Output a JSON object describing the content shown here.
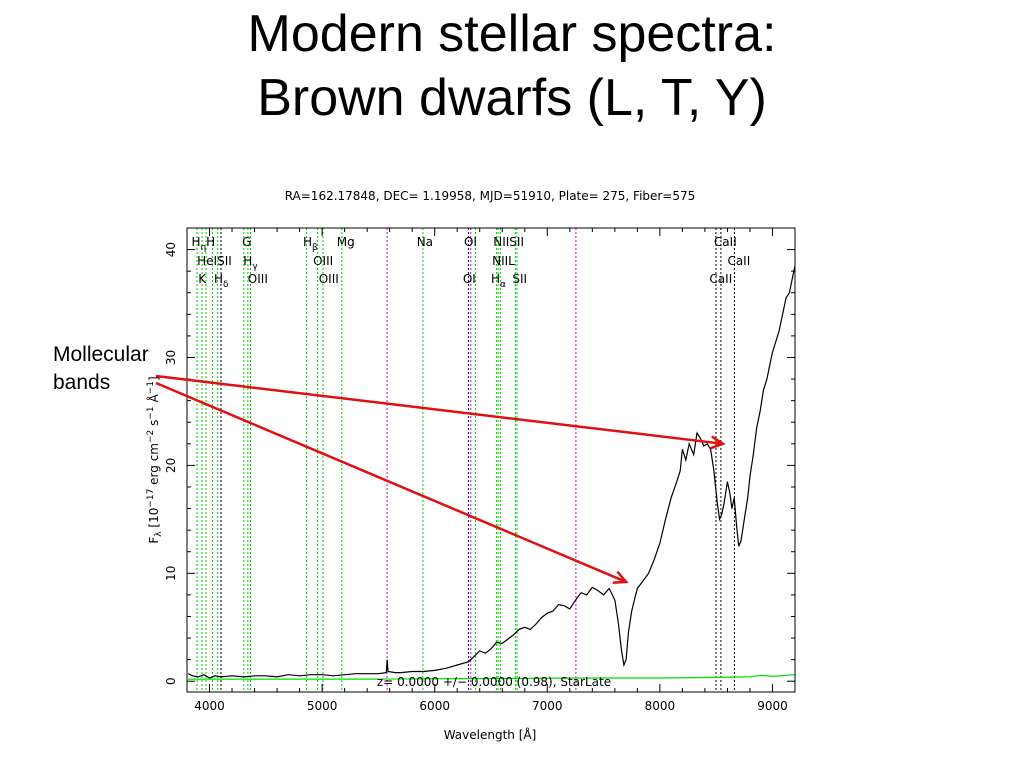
{
  "slide": {
    "title_line1": "Modern stellar spectra:",
    "title_line2": "Brown dwarfs (L, T, Y)",
    "callout_line1": "Mollecular",
    "callout_line2": "bands"
  },
  "chart_data": {
    "type": "line",
    "title": "RA=162.17848, DEC= 1.19958, MJD=51910, Plate= 275, Fiber=575",
    "xlabel": "Wavelength [Å]",
    "ylabel_main": "F",
    "ylabel_sub": "λ",
    "ylabel_rest": " [10",
    "ylabel_exp1": "−17",
    "ylabel_mid": " erg cm",
    "ylabel_exp2": "−2",
    "ylabel_mid2": " s",
    "ylabel_exp3": "−1",
    "ylabel_end": " Å",
    "ylabel_exp4": "−1",
    "ylabel_close": "]",
    "annotation": "z= 0.0000 +/− 0.0000 (0.98), StarLate",
    "xlim": [
      3800,
      9200
    ],
    "ylim": [
      -1,
      42
    ],
    "x_ticks": [
      4000,
      5000,
      6000,
      7000,
      8000,
      9000
    ],
    "y_ticks": [
      0,
      10,
      20,
      30,
      40
    ],
    "series": [
      {
        "color": "#000000",
        "points": [
          [
            3810,
            0.7
          ],
          [
            3850,
            0.5
          ],
          [
            3900,
            0.4
          ],
          [
            3950,
            0.6
          ],
          [
            4000,
            0.3
          ],
          [
            4050,
            0.5
          ],
          [
            4100,
            0.4
          ],
          [
            4200,
            0.5
          ],
          [
            4300,
            0.4
          ],
          [
            4400,
            0.5
          ],
          [
            4500,
            0.5
          ],
          [
            4600,
            0.4
          ],
          [
            4700,
            0.6
          ],
          [
            4800,
            0.5
          ],
          [
            4900,
            0.6
          ],
          [
            5000,
            0.6
          ],
          [
            5100,
            0.5
          ],
          [
            5200,
            0.6
          ],
          [
            5300,
            0.7
          ],
          [
            5400,
            0.7
          ],
          [
            5500,
            0.7
          ],
          [
            5570,
            0.8
          ],
          [
            5577,
            2.0
          ],
          [
            5585,
            0.9
          ],
          [
            5650,
            0.8
          ],
          [
            5700,
            0.8
          ],
          [
            5800,
            0.9
          ],
          [
            5900,
            0.9
          ],
          [
            6000,
            1.0
          ],
          [
            6100,
            1.2
          ],
          [
            6200,
            1.5
          ],
          [
            6300,
            1.8
          ],
          [
            6350,
            2.3
          ],
          [
            6400,
            2.8
          ],
          [
            6450,
            2.6
          ],
          [
            6500,
            3.0
          ],
          [
            6550,
            3.6
          ],
          [
            6600,
            3.5
          ],
          [
            6650,
            3.9
          ],
          [
            6700,
            4.3
          ],
          [
            6750,
            4.8
          ],
          [
            6800,
            5.0
          ],
          [
            6850,
            4.8
          ],
          [
            6900,
            5.3
          ],
          [
            6950,
            5.9
          ],
          [
            7000,
            6.3
          ],
          [
            7050,
            6.5
          ],
          [
            7100,
            7.1
          ],
          [
            7150,
            7.0
          ],
          [
            7200,
            6.7
          ],
          [
            7250,
            7.5
          ],
          [
            7300,
            8.2
          ],
          [
            7350,
            8.0
          ],
          [
            7400,
            8.7
          ],
          [
            7450,
            8.4
          ],
          [
            7500,
            8.0
          ],
          [
            7550,
            8.6
          ],
          [
            7600,
            7.5
          ],
          [
            7630,
            5.5
          ],
          [
            7660,
            2.8
          ],
          [
            7680,
            1.5
          ],
          [
            7700,
            2.0
          ],
          [
            7720,
            4.5
          ],
          [
            7750,
            6.5
          ],
          [
            7780,
            7.8
          ],
          [
            7800,
            8.6
          ],
          [
            7850,
            9.3
          ],
          [
            7900,
            10.0
          ],
          [
            7950,
            11.3
          ],
          [
            8000,
            12.8
          ],
          [
            8050,
            15.0
          ],
          [
            8100,
            17.0
          ],
          [
            8150,
            18.5
          ],
          [
            8180,
            19.5
          ],
          [
            8200,
            21.5
          ],
          [
            8230,
            20.5
          ],
          [
            8260,
            22.0
          ],
          [
            8300,
            21.0
          ],
          [
            8330,
            23.0
          ],
          [
            8360,
            22.5
          ],
          [
            8390,
            21.8
          ],
          [
            8420,
            22.0
          ],
          [
            8450,
            21.5
          ],
          [
            8480,
            19.5
          ],
          [
            8510,
            16.5
          ],
          [
            8530,
            15.0
          ],
          [
            8550,
            15.5
          ],
          [
            8570,
            16.5
          ],
          [
            8600,
            18.5
          ],
          [
            8620,
            17.5
          ],
          [
            8640,
            16.0
          ],
          [
            8660,
            17.0
          ],
          [
            8680,
            14.5
          ],
          [
            8700,
            12.5
          ],
          [
            8720,
            13.0
          ],
          [
            8750,
            15.0
          ],
          [
            8780,
            17.0
          ],
          [
            8800,
            19.0
          ],
          [
            8830,
            21.0
          ],
          [
            8860,
            23.5
          ],
          [
            8890,
            25.0
          ],
          [
            8920,
            27.0
          ],
          [
            8950,
            28.0
          ],
          [
            8980,
            29.5
          ],
          [
            9000,
            30.5
          ],
          [
            9030,
            31.5
          ],
          [
            9060,
            32.5
          ],
          [
            9090,
            34.0
          ],
          [
            9120,
            35.5
          ],
          [
            9150,
            36.0
          ],
          [
            9180,
            37.5
          ],
          [
            9200,
            38.5
          ]
        ]
      },
      {
        "color": "#00dd00",
        "points": [
          [
            3810,
            0.2
          ],
          [
            4500,
            0.2
          ],
          [
            5500,
            0.2
          ],
          [
            6500,
            0.25
          ],
          [
            7500,
            0.3
          ],
          [
            8000,
            0.3
          ],
          [
            8500,
            0.35
          ],
          [
            8800,
            0.4
          ],
          [
            8900,
            0.55
          ],
          [
            9000,
            0.45
          ],
          [
            9200,
            0.6
          ]
        ]
      }
    ],
    "line_markers": [
      {
        "x": 3889,
        "color": "#00cc00"
      },
      {
        "x": 3934,
        "color": "#00cc00"
      },
      {
        "x": 3969,
        "color": "#00cc00"
      },
      {
        "x": 4026,
        "color": "#00cc00"
      },
      {
        "x": 4072,
        "color": "#00cc00"
      },
      {
        "x": 4102,
        "color": "#000000"
      },
      {
        "x": 4305,
        "color": "#00cc00"
      },
      {
        "x": 4341,
        "color": "#00cc00"
      },
      {
        "x": 4364,
        "color": "#00cc00"
      },
      {
        "x": 4862,
        "color": "#00cc00"
      },
      {
        "x": 4960,
        "color": "#00cc00"
      },
      {
        "x": 5008,
        "color": "#00cc00"
      },
      {
        "x": 5175,
        "color": "#00cc00"
      },
      {
        "x": 5577,
        "color": "#cc00cc"
      },
      {
        "x": 5895,
        "color": "#00cc00"
      },
      {
        "x": 6300,
        "color": "#0000cc"
      },
      {
        "x": 6320,
        "color": "#cc00cc"
      },
      {
        "x": 6363,
        "color": "#00cc00"
      },
      {
        "x": 6548,
        "color": "#00cc00"
      },
      {
        "x": 6563,
        "color": "#00cc00"
      },
      {
        "x": 6583,
        "color": "#00cc00"
      },
      {
        "x": 6716,
        "color": "#00cc00"
      },
      {
        "x": 6731,
        "color": "#00cc00"
      },
      {
        "x": 7254,
        "color": "#cc00cc"
      },
      {
        "x": 8498,
        "color": "#000000"
      },
      {
        "x": 8542,
        "color": "#000000"
      },
      {
        "x": 8662,
        "color": "#000000"
      }
    ],
    "line_labels": [
      {
        "text": "H",
        "sub": "η",
        "x": 3840,
        "row": 0
      },
      {
        "text": "H",
        "x": 3970,
        "row": 0
      },
      {
        "text": "G",
        "x": 4290,
        "row": 0
      },
      {
        "text": "H",
        "sub": "β",
        "x": 4830,
        "row": 0
      },
      {
        "text": "Mg",
        "x": 5130,
        "row": 0
      },
      {
        "text": "Na",
        "x": 5840,
        "row": 0
      },
      {
        "text": "OI",
        "x": 6260,
        "row": 0
      },
      {
        "text": "NIISII",
        "x": 6520,
        "row": 0
      },
      {
        "text": "CaII",
        "x": 8480,
        "row": 0
      },
      {
        "text": "HeISII",
        "x": 3890,
        "row": 1
      },
      {
        "text": "H",
        "sub": "γ",
        "x": 4300,
        "row": 1
      },
      {
        "text": "OIII",
        "x": 4920,
        "row": 1
      },
      {
        "text": "NIIL",
        "x": 6510,
        "row": 1
      },
      {
        "text": "CaII",
        "x": 8600,
        "row": 1
      },
      {
        "text": "K",
        "x": 3900,
        "row": 2
      },
      {
        "text": "H",
        "sub": "δ",
        "x": 4040,
        "row": 2
      },
      {
        "text": "OIII",
        "x": 4340,
        "row": 2
      },
      {
        "text": "OIII",
        "x": 4970,
        "row": 2
      },
      {
        "text": "OI",
        "x": 6250,
        "row": 2
      },
      {
        "text": "H",
        "sub": "α",
        "x": 6500,
        "row": 2
      },
      {
        "text": "SII",
        "x": 6690,
        "row": 2
      },
      {
        "text": "CaII",
        "x": 8440,
        "row": 2
      }
    ],
    "arrows_target": [
      {
        "x": 8560,
        "y": 22.0
      },
      {
        "x": 7700,
        "y": 9.2
      }
    ]
  }
}
